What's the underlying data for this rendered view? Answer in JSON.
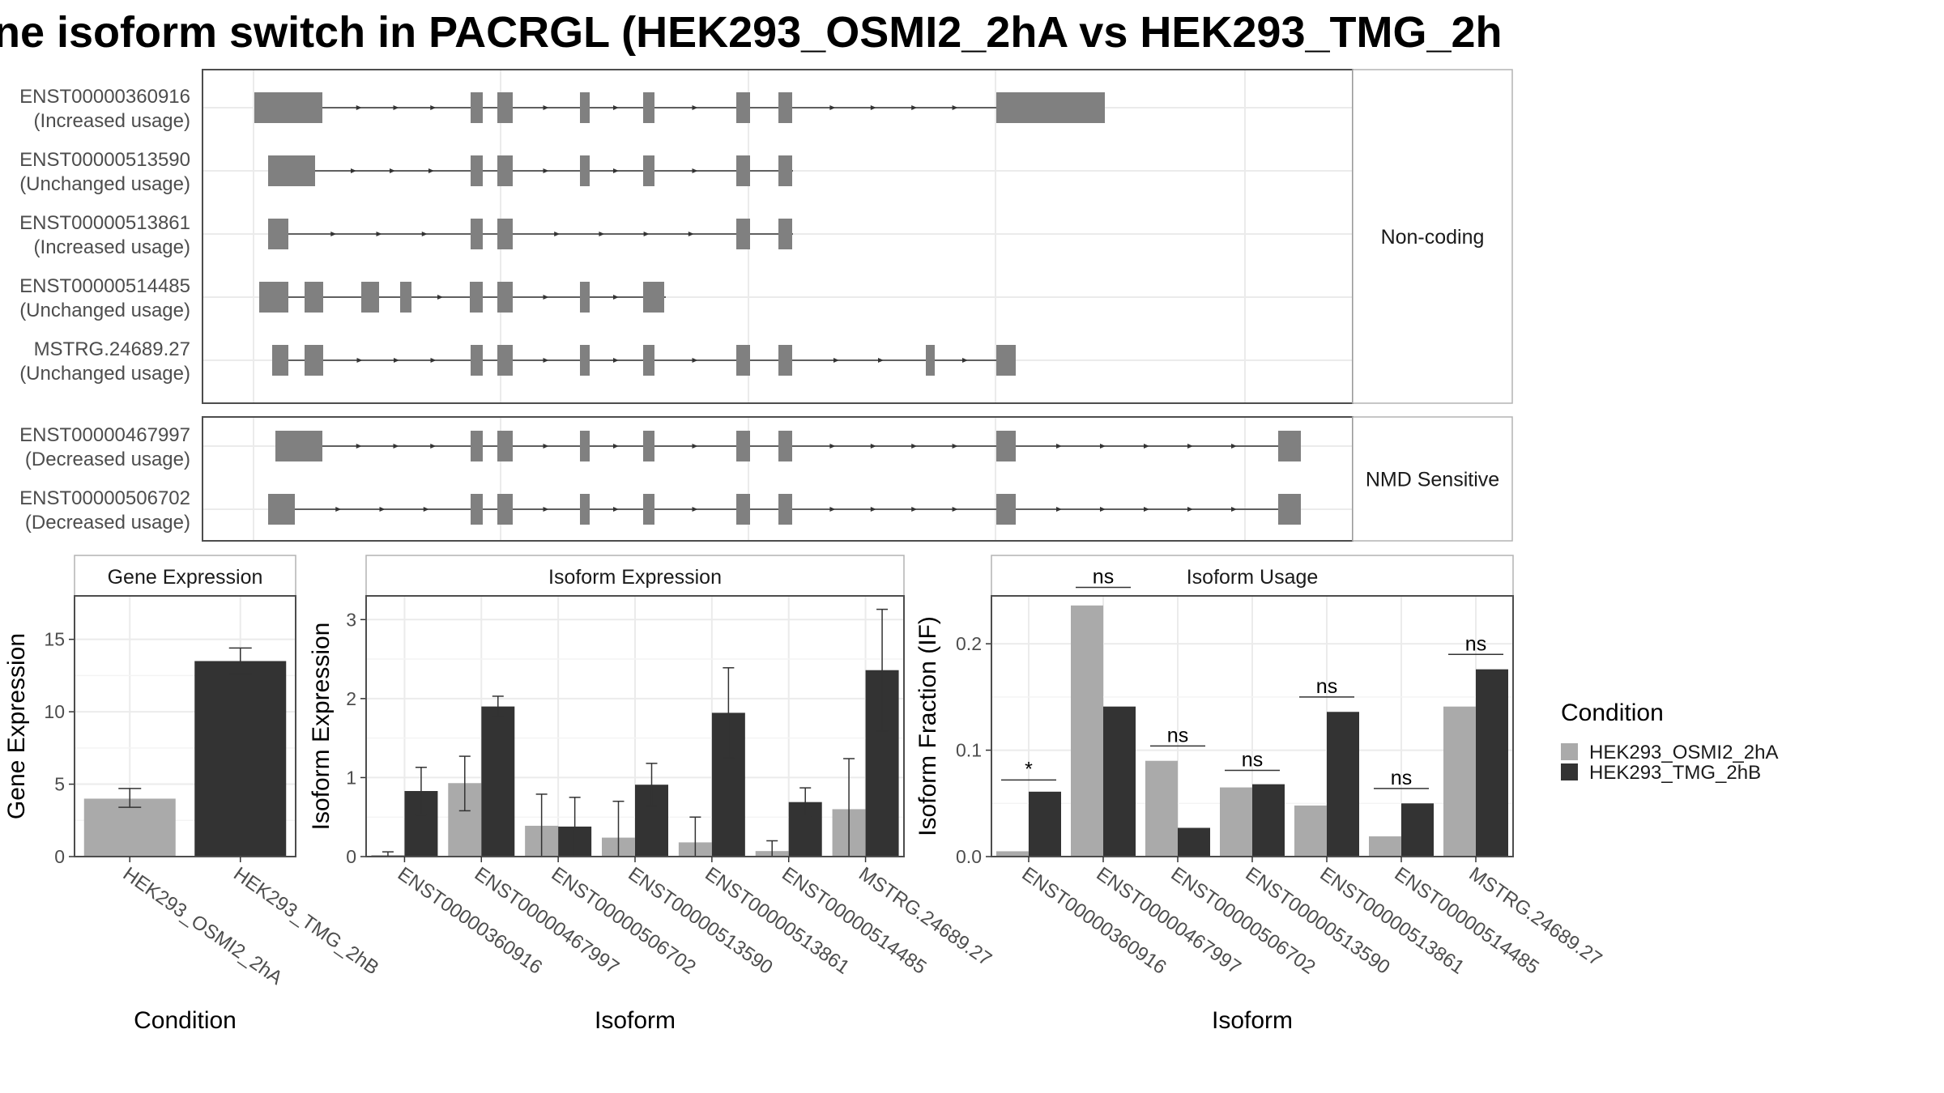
{
  "title": "ne isoform switch in PACRGL (HEK293_OSMI2_2hA vs HEK293_TMG_2h",
  "structure": {
    "panels": [
      {
        "label": "Non-coding",
        "isoforms": [
          {
            "id": "ENST00000360916",
            "usage": "(Increased usage)"
          },
          {
            "id": "ENST00000513590",
            "usage": "(Unchanged usage)"
          },
          {
            "id": "ENST00000513861",
            "usage": "(Increased usage)"
          },
          {
            "id": "ENST00000514485",
            "usage": "(Unchanged usage)"
          },
          {
            "id": "MSTRG.24689.27",
            "usage": "(Unchanged usage)"
          }
        ]
      },
      {
        "label": "NMD Sensitive",
        "isoforms": [
          {
            "id": "ENST00000467997",
            "usage": "(Decreased usage)"
          },
          {
            "id": "ENST00000506702",
            "usage": "(Decreased usage)"
          }
        ]
      }
    ]
  },
  "legend": {
    "title": "Condition",
    "items": [
      {
        "label": "HEK293_OSMI2_2hA",
        "color": "#aaaaaa"
      },
      {
        "label": "HEK293_TMG_2hB",
        "color": "#333333"
      }
    ]
  },
  "chart_data": [
    {
      "type": "bar",
      "title": "Gene Expression",
      "xlabel": "Condition",
      "ylabel": "Gene Expression",
      "ylim": [
        0,
        18
      ],
      "yticks": [
        0,
        5,
        10,
        15
      ],
      "categories": [
        "HEK293_OSMI2_2hA",
        "HEK293_TMG_2hB"
      ],
      "values": [
        4.0,
        13.5
      ],
      "err_low": [
        3.4,
        12.6
      ],
      "err_high": [
        4.7,
        14.4
      ],
      "colors": [
        "#aaaaaa",
        "#333333"
      ]
    },
    {
      "type": "bar",
      "title": "Isoform Expression",
      "xlabel": "Isoform",
      "ylabel": "Isoform Expression",
      "ylim": [
        0,
        3.3
      ],
      "yticks": [
        0,
        1,
        2,
        3
      ],
      "categories": [
        "ENST00000360916",
        "ENST00000467997",
        "ENST00000506702",
        "ENST00000513590",
        "ENST00000513861",
        "ENST00000514485",
        "MSTRG.24689.27"
      ],
      "series": [
        {
          "name": "HEK293_OSMI2_2hA",
          "color": "#aaaaaa",
          "values": [
            0.02,
            0.93,
            0.39,
            0.24,
            0.18,
            0.07,
            0.6
          ],
          "err_low": [
            0.0,
            0.58,
            0.0,
            0.0,
            0.0,
            0.0,
            0.0
          ],
          "err_high": [
            0.06,
            1.27,
            0.79,
            0.7,
            0.5,
            0.2,
            1.24
          ]
        },
        {
          "name": "HEK293_TMG_2hB",
          "color": "#333333",
          "values": [
            0.83,
            1.9,
            0.38,
            0.91,
            1.82,
            0.69,
            2.36
          ],
          "err_low": [
            0.53,
            1.77,
            0.0,
            0.64,
            1.25,
            0.51,
            1.59
          ],
          "err_high": [
            1.13,
            2.03,
            0.75,
            1.18,
            2.39,
            0.87,
            3.13
          ]
        }
      ]
    },
    {
      "type": "bar",
      "title": "Isoform Usage",
      "xlabel": "Isoform",
      "ylabel": "Isoform Fraction (IF)",
      "ylim": [
        0,
        0.245
      ],
      "yticks": [
        0.0,
        0.1,
        0.2
      ],
      "ytick_labels": [
        "0.0",
        "0.1",
        "0.2"
      ],
      "categories": [
        "ENST00000360916",
        "ENST00000467997",
        "ENST00000506702",
        "ENST00000513590",
        "ENST00000513861",
        "ENST00000514485",
        "MSTRG.24689.27"
      ],
      "series": [
        {
          "name": "HEK293_OSMI2_2hA",
          "color": "#aaaaaa",
          "values": [
            0.005,
            0.236,
            0.09,
            0.065,
            0.048,
            0.019,
            0.141
          ]
        },
        {
          "name": "HEK293_TMG_2hB",
          "color": "#333333",
          "values": [
            0.061,
            0.141,
            0.027,
            0.068,
            0.136,
            0.05,
            0.176
          ]
        }
      ],
      "significance": [
        "*",
        "ns",
        "ns",
        "ns",
        "ns",
        "ns",
        "ns"
      ],
      "sig_level": [
        0.072,
        0.253,
        0.104,
        0.081,
        0.15,
        0.064,
        0.19
      ]
    }
  ]
}
